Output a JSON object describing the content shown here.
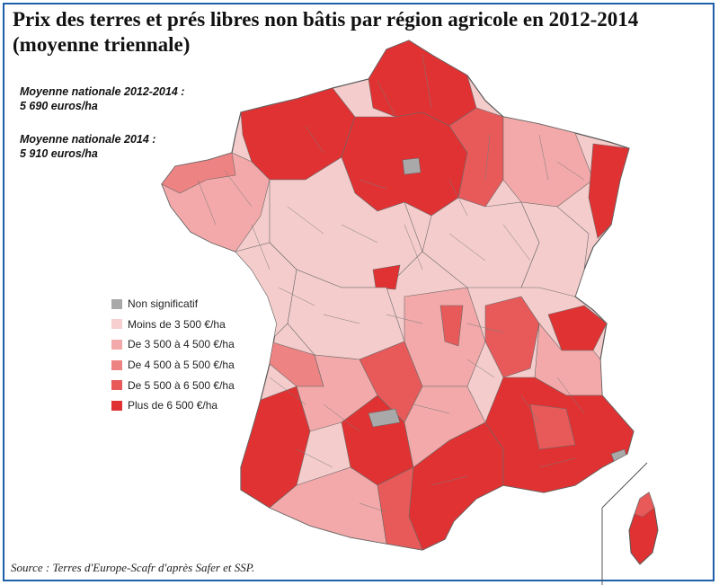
{
  "title_line1": "Prix des terres et prés libres non bâtis par région agricole en 2012-2014",
  "title_line2": "(moyenne triennale)",
  "stats": [
    {
      "label": "Moyenne nationale 2012-2014 :",
      "value": "5 690 euros/ha"
    },
    {
      "label": "Moyenne nationale 2014 :",
      "value": "5 910 euros/ha"
    }
  ],
  "legend": [
    {
      "label": "Non significatif",
      "color": "#a9a9a9"
    },
    {
      "label": "Moins de 3 500 €/ha",
      "color": "#f7cfcf"
    },
    {
      "label": "De 3 500 à 4 500 €/ha",
      "color": "#f3a9a9"
    },
    {
      "label": "De 4 500 à 5 500 €/ha",
      "color": "#ee8383"
    },
    {
      "label": "De 5 500 à 6 500 €/ha",
      "color": "#e85a5a"
    },
    {
      "label": "Plus de 6 500 €/ha",
      "color": "#e03232"
    }
  ],
  "source": "Source : Terres d'Europe-Scafr d'après Safer et SSP.",
  "colors": {
    "border": "#1f5fa8",
    "region_outline": "#5a5a5a"
  }
}
